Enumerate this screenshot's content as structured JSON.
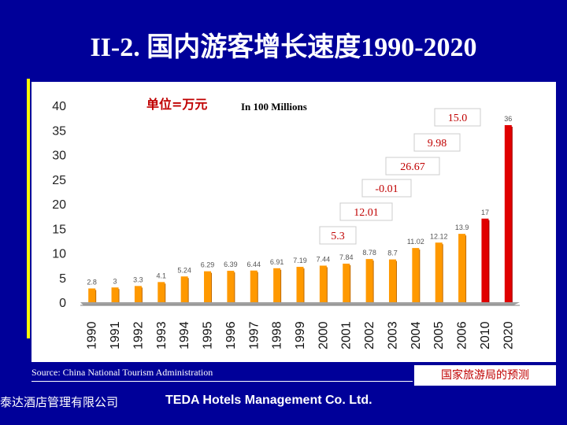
{
  "slide": {
    "title": "II-2. 国内游客增长速度1990-2020",
    "source": "Source: China National Tourism Administration",
    "forecast_note": "国家旅游局的预测",
    "company_cn": "泰达酒店管理有限公司",
    "company_en": "TEDA Hotels Management Co. Ltd."
  },
  "colors": {
    "background": "#000099",
    "bar_actual": "#ff9900",
    "bar_forecast": "#e00000",
    "accent": "#ffff00"
  },
  "chart_data": {
    "type": "bar",
    "unit_cn": "单位=万元",
    "unit_en": "In 100 Millions",
    "ylim": [
      0,
      40
    ],
    "yticks": [
      0,
      5,
      10,
      15,
      20,
      25,
      30,
      35,
      40
    ],
    "categories": [
      "1990",
      "1991",
      "1992",
      "1993",
      "1994",
      "1995",
      "1996",
      "1997",
      "1998",
      "1999",
      "2000",
      "2001",
      "2002",
      "2003",
      "2004",
      "2005",
      "2006",
      "2010",
      "2020"
    ],
    "values": [
      2.8,
      3,
      3.3,
      4.1,
      5.24,
      6.29,
      6.39,
      6.44,
      6.91,
      7.19,
      7.44,
      7.84,
      8.78,
      8.7,
      11.02,
      12.12,
      13.9,
      17,
      36
    ],
    "value_labels": [
      "2.8",
      "3",
      "3.3",
      "4.1",
      "5.24",
      "6.29",
      "6.39",
      "6.44",
      "6.91",
      "7.19",
      "7.44",
      "7.84",
      "8.78",
      "8.7",
      "11.02",
      "12.12",
      "13.9",
      "17",
      "36"
    ],
    "forecast": [
      false,
      false,
      false,
      false,
      false,
      false,
      false,
      false,
      false,
      false,
      false,
      false,
      false,
      false,
      false,
      false,
      false,
      true,
      true
    ],
    "growth_labels": [
      "5.3",
      "12.01",
      "-0.01",
      "26.67",
      "9.98",
      "15.0"
    ]
  }
}
